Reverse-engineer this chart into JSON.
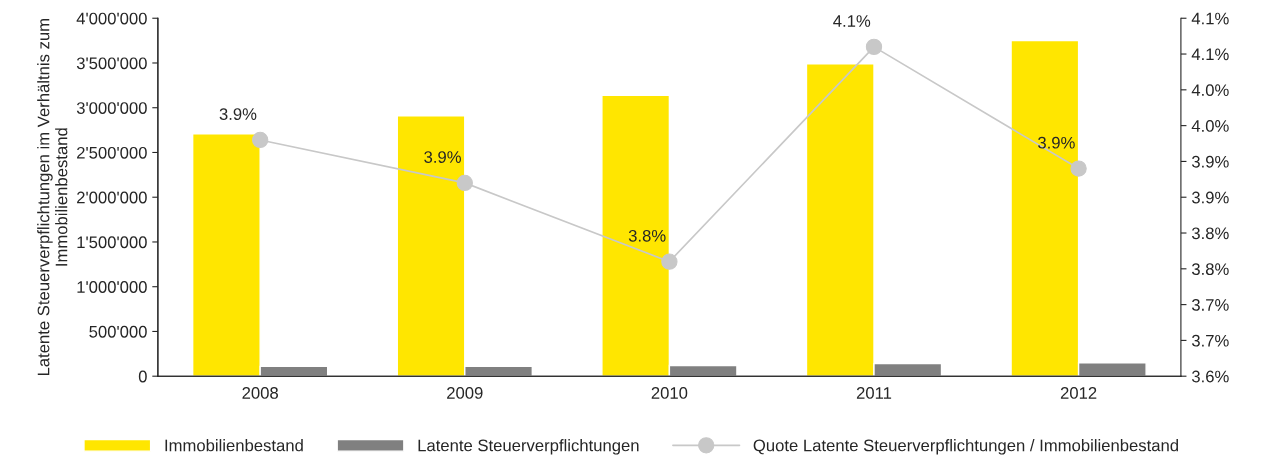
{
  "chart_data": {
    "type": "bar",
    "ylabel": "Latente Steuerverpflichtungen im Verhältnis zum\nImmobilienbestand",
    "categories": [
      "2008",
      "2009",
      "2010",
      "2011",
      "2012"
    ],
    "series": [
      {
        "name": "Immobilienbestand",
        "color": "#ffe600",
        "values": [
          2710000,
          2910000,
          3140000,
          3490000,
          3750000
        ]
      },
      {
        "name": "Latente Steuerverpflichtungen",
        "color": "#808080",
        "values": [
          110000,
          110000,
          120000,
          140000,
          150000
        ]
      },
      {
        "name": "Quote Latente Steuerverpflichtungen / Immobilienbestand",
        "type": "line",
        "axis": "y2",
        "color": "#c8c8c8",
        "marker": "circle",
        "values": [
          3.93,
          3.87,
          3.76,
          4.06,
          3.89
        ],
        "value_labels": [
          "3.9%",
          "3.9%",
          "3.8%",
          "4.1%",
          "3.9%"
        ]
      }
    ],
    "ylim": [
      0,
      4000000
    ],
    "yticks": [
      {
        "value": 0,
        "label": "0"
      },
      {
        "value": 500000,
        "label": "500'000"
      },
      {
        "value": 1000000,
        "label": "1'000'000"
      },
      {
        "value": 1500000,
        "label": "1'500'000"
      },
      {
        "value": 2000000,
        "label": "2'000'000"
      },
      {
        "value": 2500000,
        "label": "2'500'000"
      },
      {
        "value": 3000000,
        "label": "3'000'000"
      },
      {
        "value": 3500000,
        "label": "3'500'000"
      },
      {
        "value": 4000000,
        "label": "4'000'000"
      }
    ],
    "y2lim": [
      3.6,
      4.1
    ],
    "y2ticks": [
      {
        "value": 3.6,
        "label": "3.6%"
      },
      {
        "value": 3.65,
        "label": "3.7%"
      },
      {
        "value": 3.7,
        "label": "3.7%"
      },
      {
        "value": 3.75,
        "label": "3.8%"
      },
      {
        "value": 3.8,
        "label": "3.8%"
      },
      {
        "value": 3.85,
        "label": "3.9%"
      },
      {
        "value": 3.9,
        "label": "3.9%"
      },
      {
        "value": 3.95,
        "label": "4.0%"
      },
      {
        "value": 4.0,
        "label": "4.0%"
      },
      {
        "value": 4.05,
        "label": "4.1%"
      },
      {
        "value": 4.1,
        "label": "4.1%"
      }
    ],
    "grid": false,
    "legend": "bottom"
  }
}
